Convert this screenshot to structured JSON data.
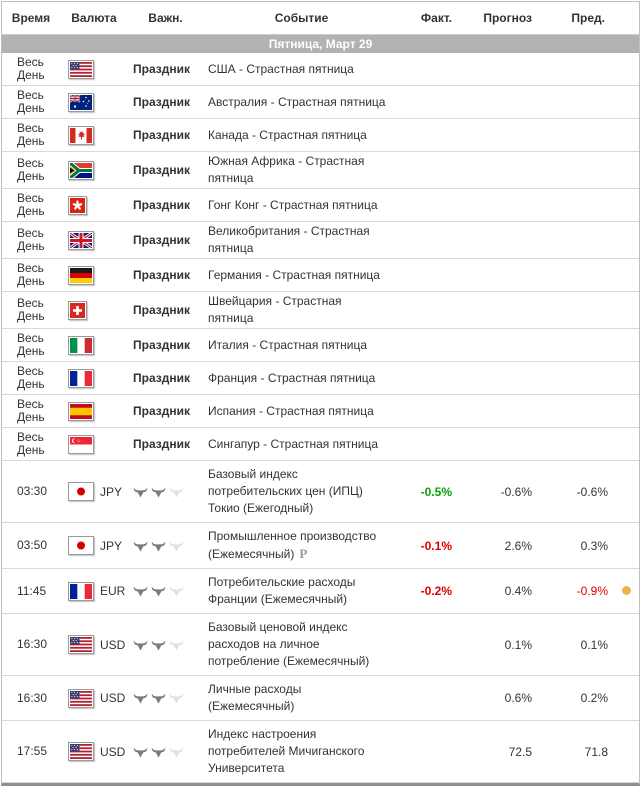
{
  "table": {
    "columns": [
      "Время",
      "Валюта",
      "Важн.",
      "Событие",
      "Факт.",
      "Прогноз",
      "Пред."
    ],
    "day_header": "Пятница, Март 29",
    "rows": [
      {
        "type": "holiday",
        "time": "Весь День",
        "flag": "us",
        "importance_label": "Праздник",
        "event": "США - Страстная пятница"
      },
      {
        "type": "holiday",
        "time": "Весь День",
        "flag": "au",
        "importance_label": "Праздник",
        "event": "Австралия - Страстная пятница"
      },
      {
        "type": "holiday",
        "time": "Весь День",
        "flag": "ca",
        "importance_label": "Праздник",
        "event": "Канада - Страстная пятница"
      },
      {
        "type": "holiday",
        "time": "Весь День",
        "flag": "za",
        "importance_label": "Праздник",
        "event": "Южная Африка - Страстная пятница"
      },
      {
        "type": "holiday",
        "time": "Весь День",
        "flag": "hk",
        "importance_label": "Праздник",
        "event": "Гонг Конг - Страстная пятница"
      },
      {
        "type": "holiday",
        "time": "Весь День",
        "flag": "gb",
        "importance_label": "Праздник",
        "event": "Великобритания - Страстная пятница"
      },
      {
        "type": "holiday",
        "time": "Весь День",
        "flag": "de",
        "importance_label": "Праздник",
        "event": "Германия - Страстная пятница"
      },
      {
        "type": "holiday",
        "time": "Весь День",
        "flag": "ch",
        "importance_label": "Праздник",
        "event": "Швейцария - Страстная пятница"
      },
      {
        "type": "holiday",
        "time": "Весь День",
        "flag": "it",
        "importance_label": "Праздник",
        "event": "Италия - Страстная пятница"
      },
      {
        "type": "holiday",
        "time": "Весь День",
        "flag": "fr",
        "importance_label": "Праздник",
        "event": "Франция - Страстная пятница"
      },
      {
        "type": "holiday",
        "time": "Весь День",
        "flag": "es",
        "importance_label": "Праздник",
        "event": "Испания - Страстная пятница"
      },
      {
        "type": "holiday",
        "time": "Весь День",
        "flag": "sg",
        "importance_label": "Праздник",
        "event": "Сингапур - Страстная пятница"
      },
      {
        "type": "event",
        "time": "03:30",
        "flag": "jp",
        "currency": "JPY",
        "importance": 2,
        "event": "Базовый индекс потребительских цен (ИПЦ) Токио (Ежегодный)",
        "actual": "-0.5%",
        "actual_color": "positive",
        "forecast": "-0.6%",
        "previous": "-0.6%"
      },
      {
        "type": "event",
        "time": "03:50",
        "flag": "jp",
        "currency": "JPY",
        "importance": 2,
        "event": "Промышленное производство (Ежемесячный)",
        "preliminary": "P",
        "actual": "-0.1%",
        "actual_color": "negative",
        "forecast": "2.6%",
        "previous": "0.3%"
      },
      {
        "type": "event",
        "time": "11:45",
        "flag": "fr",
        "currency": "EUR",
        "importance": 2,
        "event": "Потребительские расходы Франции (Ежемесячный)",
        "actual": "-0.2%",
        "actual_color": "negative",
        "forecast": "0.4%",
        "previous": "-0.9%",
        "previous_color": "negative",
        "note_dot": true
      },
      {
        "type": "event",
        "time": "16:30",
        "flag": "us",
        "currency": "USD",
        "importance": 2,
        "event": "Базовый ценовой индекс расходов на личное потребление (Ежемесячный)",
        "actual": "",
        "forecast": "0.1%",
        "previous": "0.1%"
      },
      {
        "type": "event",
        "time": "16:30",
        "flag": "us",
        "currency": "USD",
        "importance": 2,
        "event": "Личные расходы (Ежемесячный)",
        "actual": "",
        "forecast": "0.6%",
        "previous": "0.2%"
      },
      {
        "type": "event",
        "time": "17:55",
        "flag": "us",
        "currency": "USD",
        "importance": 2,
        "event": "Индекс настроения потребителей Мичиганского Университета",
        "actual": "",
        "forecast": "72.5",
        "previous": "71.8"
      }
    ]
  },
  "colors": {
    "positive": "#0ca00c",
    "negative": "#e00000",
    "default_value": "#333333",
    "day_banner_bg": "#b2b2b2",
    "note_dot": "#eeb24a",
    "bull_active": "#7c7c7c",
    "bull_inactive": "#e2e2e2"
  },
  "importance_max": 3
}
